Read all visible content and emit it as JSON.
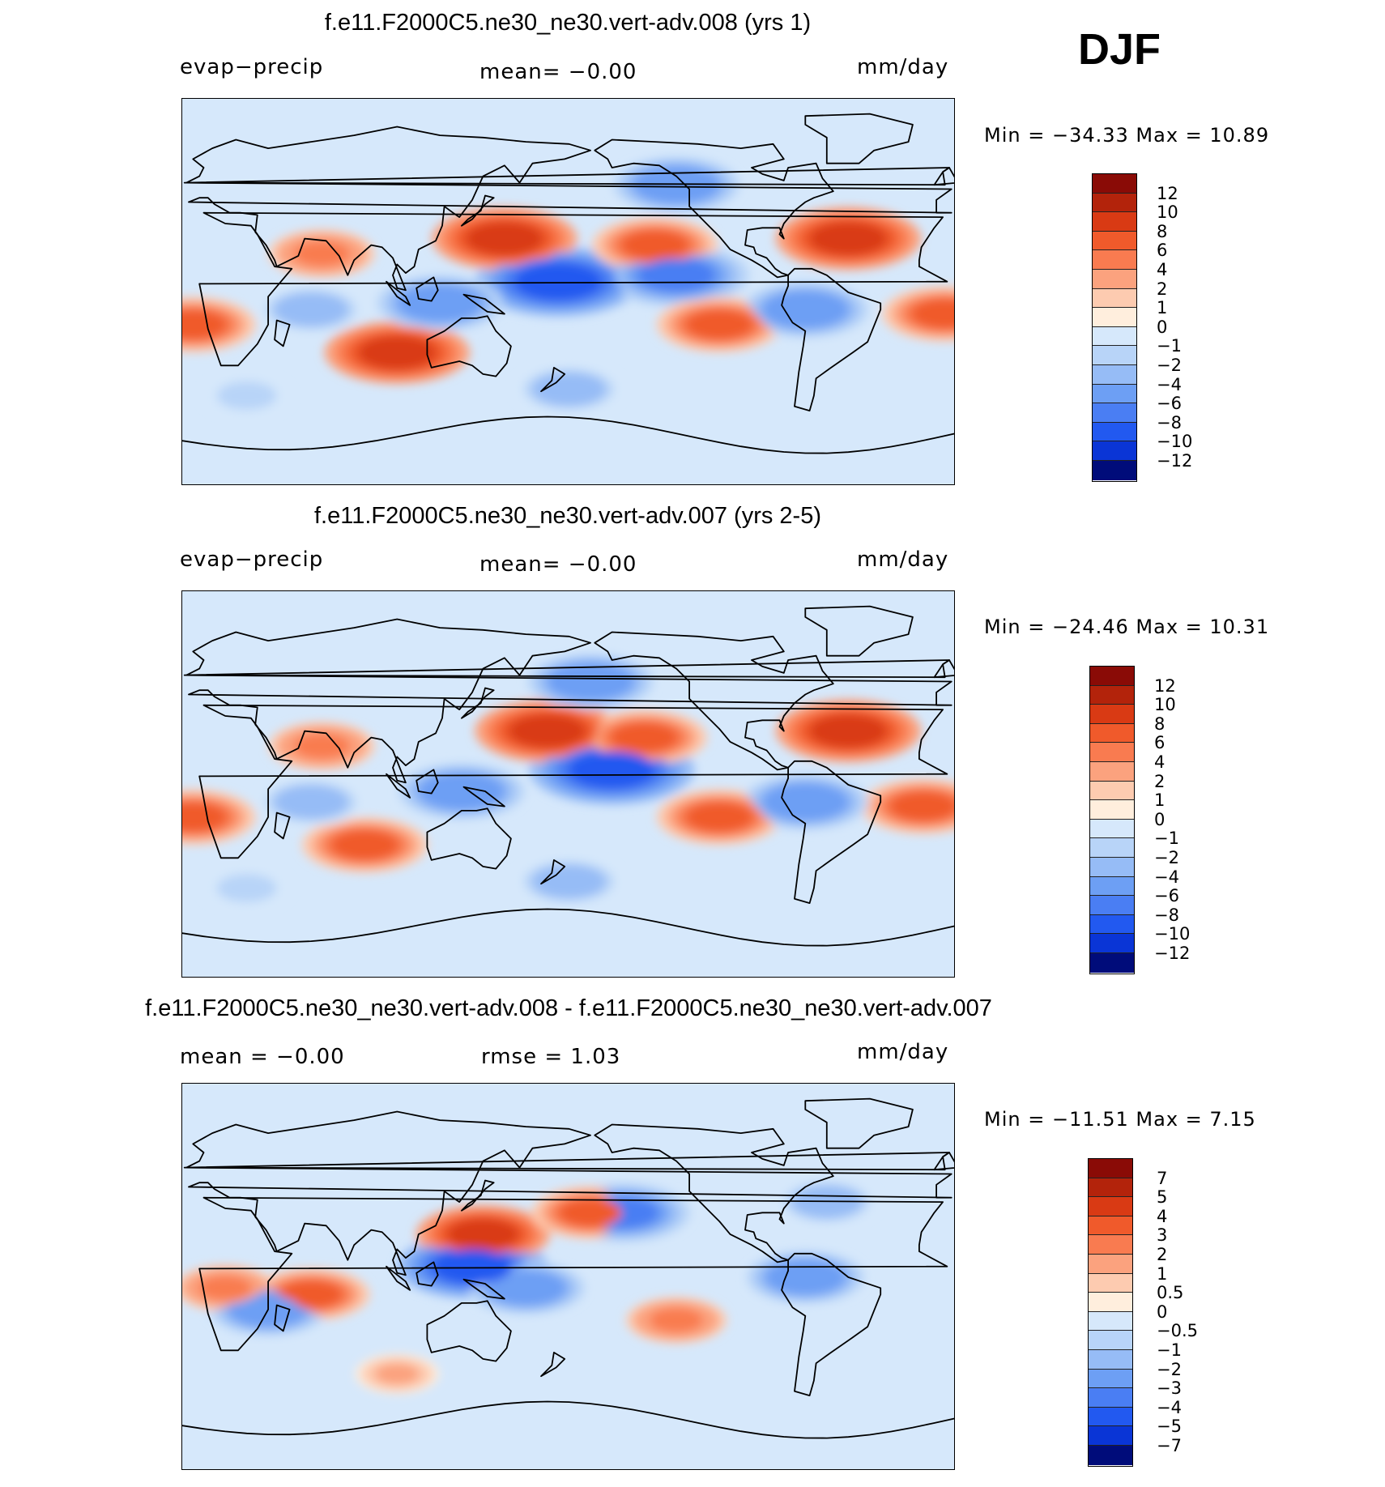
{
  "season": "DJF",
  "colors": {
    "warm": [
      "#ffeedd",
      "#fdcbb0",
      "#fba27e",
      "#f97b50",
      "#f05a2b",
      "#d93a14",
      "#b3230b",
      "#8a0b06"
    ],
    "cool": [
      "#d6e8fb",
      "#b8d4f8",
      "#96bcf6",
      "#6d9ff4",
      "#4a7ef3",
      "#2259f0",
      "#0a35d6",
      "#041ca8",
      "#000c7a"
    ],
    "coast": "#000000"
  },
  "panels": [
    {
      "title": "f.e11.F2000C5.ne30_ne30.vert-adv.008 (yrs 1)",
      "left_label": "evap−precip",
      "center_label": "mean=   −0.00",
      "right_label": "mm/day",
      "min_max": "Min  =  −34.33  Max  =    10.89",
      "colorbar": {
        "levels": [
          "12",
          "10",
          "8",
          "6",
          "4",
          "2",
          "1",
          "0",
          "−1",
          "−2",
          "−4",
          "−6",
          "−8",
          "−10",
          "−12"
        ],
        "colors": [
          "#8a0b06",
          "#b3230b",
          "#d93a14",
          "#f05a2b",
          "#f97b50",
          "#fba27e",
          "#fdcbb0",
          "#ffeedd",
          "#d6e8fb",
          "#b8d4f8",
          "#96bcf6",
          "#6d9ff4",
          "#4a7ef3",
          "#2259f0",
          "#0a35d6",
          "#000c7a"
        ]
      }
    },
    {
      "title": "f.e11.F2000C5.ne30_ne30.vert-adv.007 (yrs 2-5)",
      "left_label": "evap−precip",
      "center_label": "mean=   −0.00",
      "right_label": "mm/day",
      "min_max": "Min  =  −24.46  Max  =    10.31",
      "colorbar": {
        "levels": [
          "12",
          "10",
          "8",
          "6",
          "4",
          "2",
          "1",
          "0",
          "−1",
          "−2",
          "−4",
          "−6",
          "−8",
          "−10",
          "−12"
        ],
        "colors": [
          "#8a0b06",
          "#b3230b",
          "#d93a14",
          "#f05a2b",
          "#f97b50",
          "#fba27e",
          "#fdcbb0",
          "#ffeedd",
          "#d6e8fb",
          "#b8d4f8",
          "#96bcf6",
          "#6d9ff4",
          "#4a7ef3",
          "#2259f0",
          "#0a35d6",
          "#000c7a"
        ]
      }
    },
    {
      "title": "f.e11.F2000C5.ne30_ne30.vert-adv.008 - f.e11.F2000C5.ne30_ne30.vert-adv.007",
      "left_label": "mean  =    −0.00",
      "center_label": "rmse  =     1.03",
      "right_label": "mm/day",
      "min_max": "Min  =  −11.51  Max  =     7.15",
      "colorbar": {
        "levels": [
          "7",
          "5",
          "4",
          "3",
          "2",
          "1",
          "0.5",
          "0",
          "−0.5",
          "−1",
          "−2",
          "−3",
          "−4",
          "−5",
          "−7"
        ],
        "colors": [
          "#8a0b06",
          "#b3230b",
          "#d93a14",
          "#f05a2b",
          "#f97b50",
          "#fba27e",
          "#fdcbb0",
          "#ffeedd",
          "#d6e8fb",
          "#b8d4f8",
          "#96bcf6",
          "#6d9ff4",
          "#4a7ef3",
          "#2259f0",
          "#0a35d6",
          "#000c7a"
        ]
      }
    }
  ],
  "chart_data": [
    {
      "type": "heatmap",
      "title": "f.e11.F2000C5.ne30_ne30.vert-adv.008 (yrs 1)",
      "variable": "evap−precip",
      "units": "mm/day",
      "season": "DJF",
      "mean": -0.0,
      "min": -34.33,
      "max": 10.89,
      "contour_levels": [
        -12,
        -10,
        -8,
        -6,
        -4,
        -2,
        -1,
        0,
        1,
        2,
        4,
        6,
        8,
        10,
        12
      ],
      "features": [
        {
          "lon": 150,
          "lat": 25,
          "value": 8
        },
        {
          "lon": 220,
          "lat": 22,
          "value": 6
        },
        {
          "lon": 310,
          "lat": 25,
          "value": 8
        },
        {
          "lon": 100,
          "lat": -28,
          "value": 8
        },
        {
          "lon": 250,
          "lat": -15,
          "value": 6
        },
        {
          "lon": 5,
          "lat": -15,
          "value": 6
        },
        {
          "lon": 355,
          "lat": -10,
          "value": 6
        },
        {
          "lon": 65,
          "lat": 18,
          "value": 4
        },
        {
          "lon": 175,
          "lat": 5,
          "value": -10
        },
        {
          "lon": 230,
          "lat": 8,
          "value": -8
        },
        {
          "lon": 120,
          "lat": -5,
          "value": -6
        },
        {
          "lon": 290,
          "lat": -8,
          "value": -6
        },
        {
          "lon": 230,
          "lat": 50,
          "value": -6
        },
        {
          "lon": 60,
          "lat": -8,
          "value": -4
        },
        {
          "lon": 180,
          "lat": -45,
          "value": -4
        },
        {
          "lon": 30,
          "lat": -48,
          "value": -2
        }
      ]
    },
    {
      "type": "heatmap",
      "title": "f.e11.F2000C5.ne30_ne30.vert-adv.007 (yrs 2-5)",
      "variable": "evap−precip",
      "units": "mm/day",
      "season": "DJF",
      "mean": -0.0,
      "min": -24.46,
      "max": 10.31,
      "contour_levels": [
        -12,
        -10,
        -8,
        -6,
        -4,
        -2,
        -1,
        0,
        1,
        2,
        4,
        6,
        8,
        10,
        12
      ],
      "features": [
        {
          "lon": 170,
          "lat": 25,
          "value": 8
        },
        {
          "lon": 215,
          "lat": 22,
          "value": 6
        },
        {
          "lon": 310,
          "lat": 25,
          "value": 8
        },
        {
          "lon": 85,
          "lat": -28,
          "value": 6
        },
        {
          "lon": 250,
          "lat": -15,
          "value": 6
        },
        {
          "lon": 5,
          "lat": -15,
          "value": 6
        },
        {
          "lon": 345,
          "lat": -10,
          "value": 6
        },
        {
          "lon": 65,
          "lat": 18,
          "value": 4
        },
        {
          "lon": 200,
          "lat": 7,
          "value": -10
        },
        {
          "lon": 130,
          "lat": -3,
          "value": -6
        },
        {
          "lon": 290,
          "lat": -8,
          "value": -6
        },
        {
          "lon": 190,
          "lat": 48,
          "value": -6
        },
        {
          "lon": 60,
          "lat": -8,
          "value": -4
        },
        {
          "lon": 180,
          "lat": -45,
          "value": -4
        },
        {
          "lon": 30,
          "lat": -48,
          "value": -2
        }
      ]
    },
    {
      "type": "heatmap",
      "title": "f.e11.F2000C5.ne30_ne30.vert-adv.008 - f.e11.F2000C5.ne30_ne30.vert-adv.007",
      "units": "mm/day",
      "season": "DJF",
      "mean": -0.0,
      "rmse": 1.03,
      "min": -11.51,
      "max": 7.15,
      "contour_levels": [
        -7,
        -5,
        -4,
        -3,
        -2,
        -1,
        -0.5,
        0,
        0.5,
        1,
        2,
        3,
        4,
        5,
        7
      ],
      "features": [
        {
          "lon": 140,
          "lat": 20,
          "value": 4
        },
        {
          "lon": 190,
          "lat": 30,
          "value": 3
        },
        {
          "lon": 60,
          "lat": -8,
          "value": 3
        },
        {
          "lon": 135,
          "lat": 5,
          "value": -5
        },
        {
          "lon": 205,
          "lat": 30,
          "value": -4
        },
        {
          "lon": 160,
          "lat": -5,
          "value": -3
        },
        {
          "lon": 290,
          "lat": 0,
          "value": -3
        },
        {
          "lon": 40,
          "lat": -15,
          "value": -3
        },
        {
          "lon": 230,
          "lat": -20,
          "value": 2
        },
        {
          "lon": 300,
          "lat": 35,
          "value": -2
        },
        {
          "lon": 20,
          "lat": -5,
          "value": 2
        },
        {
          "lon": 100,
          "lat": -45,
          "value": 1
        }
      ]
    }
  ]
}
